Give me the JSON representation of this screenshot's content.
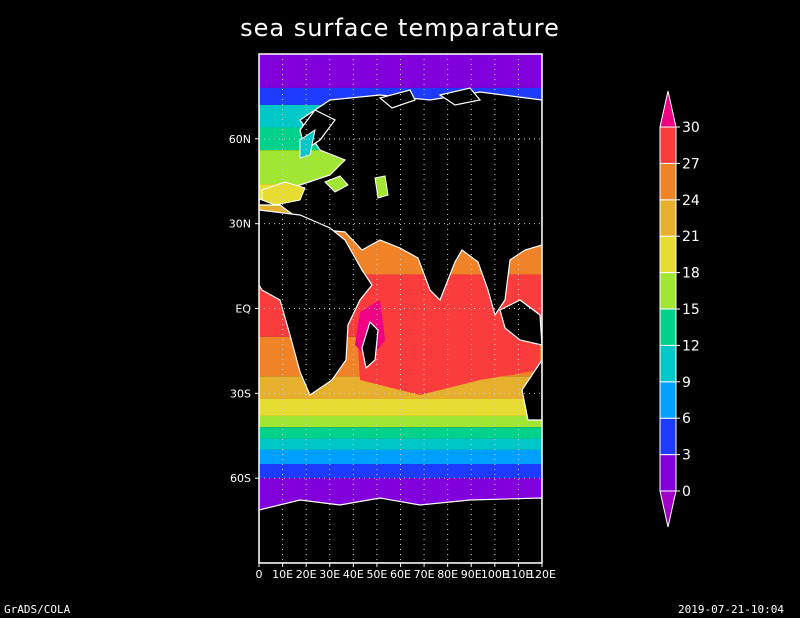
{
  "title": "sea surface temparature",
  "footer": {
    "left": "GrADS/COLA",
    "right": "2019-07-21-10:04"
  },
  "map": {
    "lon_range": [
      0,
      120
    ],
    "lat_range": [
      -90,
      90
    ],
    "lat_ticks": [
      {
        "lat": 60,
        "label": "60N"
      },
      {
        "lat": 30,
        "label": "30N"
      },
      {
        "lat": 0,
        "label": "EQ"
      },
      {
        "lat": -30,
        "label": "30S"
      },
      {
        "lat": -60,
        "label": "60S"
      }
    ],
    "lon_ticks": [
      {
        "lon": 0,
        "label": "0"
      },
      {
        "lon": 10,
        "label": "10E"
      },
      {
        "lon": 20,
        "label": "20E"
      },
      {
        "lon": 30,
        "label": "30E"
      },
      {
        "lon": 40,
        "label": "40E"
      },
      {
        "lon": 50,
        "label": "50E"
      },
      {
        "lon": 60,
        "label": "60E"
      },
      {
        "lon": 70,
        "label": "70E"
      },
      {
        "lon": 80,
        "label": "80E"
      },
      {
        "lon": 90,
        "label": "90E"
      },
      {
        "lon": 100,
        "label": "100E"
      },
      {
        "lon": 110,
        "label": "110E"
      },
      {
        "lon": 120,
        "label": "120E"
      }
    ],
    "colors": {
      "land": "#000000",
      "background": "#000000",
      "coast": "#ffffff",
      "grid": "#cccccc"
    }
  },
  "colorbar": {
    "levels": [
      0,
      3,
      6,
      9,
      12,
      15,
      18,
      21,
      24,
      27,
      30
    ],
    "colors": [
      "#a000c8",
      "#8200dc",
      "#1e3cff",
      "#00a0ff",
      "#00c8c8",
      "#00d28c",
      "#a0e632",
      "#e6dc32",
      "#e6af2d",
      "#f08228",
      "#fa3c3c",
      "#f00082"
    ]
  }
}
